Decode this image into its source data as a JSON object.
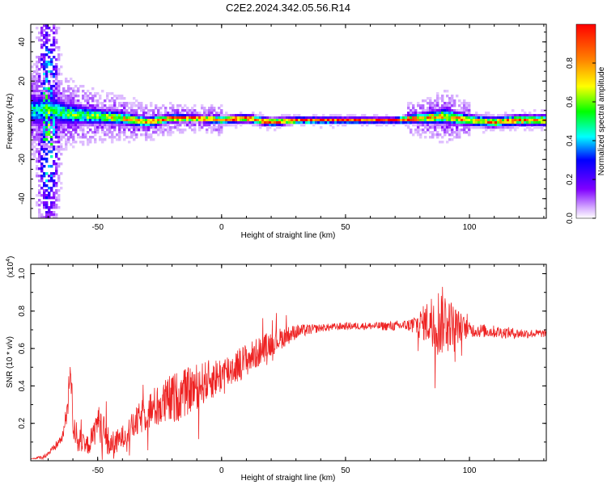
{
  "figure": {
    "title": "C2E2.2024.342.05.56.R14"
  },
  "chart_data": [
    {
      "type": "heatmap",
      "title": "C2E2.2024.342.05.56.R14",
      "xlabel": "Height of straight line (km)",
      "ylabel": "Frequency (Hz)",
      "xlim": [
        -77,
        131
      ],
      "ylim": [
        -50,
        49
      ],
      "x_ticks": [
        -50,
        0,
        50,
        100
      ],
      "y_ticks": [
        -40,
        -20,
        0,
        20,
        40
      ],
      "colorbar": {
        "label": "Normalized spectral amplitude",
        "range": [
          0,
          1
        ],
        "ticks": [
          0.0,
          0.2,
          0.4,
          0.6,
          0.8
        ],
        "tick_labels": [
          "0.0",
          "0.2",
          "0.4",
          "0.6",
          "0.8"
        ],
        "colormap": [
          "#ffffff",
          "#d9b3ff",
          "#8000ff",
          "#0000ff",
          "#00ffff",
          "#00ff00",
          "#ffff00",
          "#ff8000",
          "#ff0000"
        ]
      },
      "ridge": [
        {
          "x": -70,
          "f": 5,
          "width": 6,
          "amp": 0.45
        },
        {
          "x": -60,
          "f": 3,
          "width": 4,
          "amp": 0.55
        },
        {
          "x": -50,
          "f": 2,
          "width": 3,
          "amp": 0.6
        },
        {
          "x": -40,
          "f": 1,
          "width": 2.5,
          "amp": 0.7
        },
        {
          "x": -30,
          "f": -1,
          "width": 2,
          "amp": 0.8
        },
        {
          "x": -20,
          "f": 1,
          "width": 1.5,
          "amp": 0.9
        },
        {
          "x": -10,
          "f": 1,
          "width": 1.2,
          "amp": 0.95
        },
        {
          "x": 0,
          "f": 0,
          "width": 1.5,
          "amp": 0.9
        },
        {
          "x": 10,
          "f": 1,
          "width": 1.5,
          "amp": 0.9
        },
        {
          "x": 20,
          "f": -1,
          "width": 1.5,
          "amp": 0.9
        },
        {
          "x": 30,
          "f": 0,
          "width": 1.2,
          "amp": 0.95
        },
        {
          "x": 50,
          "f": 0,
          "width": 1.0,
          "amp": 1.0
        },
        {
          "x": 70,
          "f": 0,
          "width": 1.0,
          "amp": 1.0
        },
        {
          "x": 80,
          "f": 1,
          "width": 2,
          "amp": 0.8
        },
        {
          "x": 90,
          "f": 2,
          "width": 3,
          "amp": 0.7
        },
        {
          "x": 100,
          "f": 0,
          "width": 2,
          "amp": 0.8
        },
        {
          "x": 110,
          "f": -1,
          "width": 2,
          "amp": 0.8
        },
        {
          "x": 120,
          "f": 0,
          "width": 2,
          "amp": 0.85
        },
        {
          "x": 131,
          "f": 0,
          "width": 2,
          "amp": 0.8
        }
      ]
    },
    {
      "type": "line",
      "xlabel": "Height of straight line (km)",
      "ylabel": "SNR (10 * v/v)",
      "y_multiplier": "(x10",
      "y_multiplier_exp": "4",
      "y_multiplier_close": ")",
      "xlim": [
        -77,
        131
      ],
      "ylim": [
        0,
        1.05
      ],
      "x_ticks": [
        -50,
        0,
        50,
        100
      ],
      "y_ticks": [
        0.2,
        0.4,
        0.6,
        0.8,
        1.0
      ],
      "series": [
        {
          "color": "#ee2222",
          "x": [
            -77,
            -72,
            -68,
            -64,
            -62,
            -61,
            -60,
            -58,
            -55,
            -52,
            -50,
            -48,
            -46,
            -44,
            -42,
            -40,
            -36,
            -32,
            -28,
            -24,
            -20,
            -15,
            -10,
            -5,
            0,
            5,
            10,
            15,
            20,
            25,
            30,
            35,
            40,
            50,
            60,
            70,
            80,
            85,
            88,
            90,
            92,
            95,
            100,
            110,
            120,
            131
          ],
          "y": [
            0.01,
            0.02,
            0.06,
            0.13,
            0.3,
            0.55,
            0.2,
            0.12,
            0.07,
            0.12,
            0.22,
            0.16,
            0.1,
            0.08,
            0.1,
            0.13,
            0.18,
            0.24,
            0.28,
            0.3,
            0.33,
            0.36,
            0.4,
            0.43,
            0.46,
            0.5,
            0.54,
            0.58,
            0.63,
            0.66,
            0.69,
            0.7,
            0.71,
            0.72,
            0.72,
            0.72,
            0.73,
            0.75,
            0.74,
            0.76,
            0.74,
            0.72,
            0.7,
            0.69,
            0.68,
            0.68
          ]
        }
      ],
      "noise": [
        {
          "x": -77,
          "amp": 0.0
        },
        {
          "x": -64,
          "amp": 0.03
        },
        {
          "x": -61,
          "amp": 0.1
        },
        {
          "x": -55,
          "amp": 0.05
        },
        {
          "x": -48,
          "amp": 0.1
        },
        {
          "x": -40,
          "amp": 0.06
        },
        {
          "x": -30,
          "amp": 0.1
        },
        {
          "x": -20,
          "amp": 0.14
        },
        {
          "x": -10,
          "amp": 0.12
        },
        {
          "x": 0,
          "amp": 0.1
        },
        {
          "x": 10,
          "amp": 0.09
        },
        {
          "x": 20,
          "amp": 0.07
        },
        {
          "x": 30,
          "amp": 0.04
        },
        {
          "x": 40,
          "amp": 0.02
        },
        {
          "x": 60,
          "amp": 0.02
        },
        {
          "x": 75,
          "amp": 0.03
        },
        {
          "x": 82,
          "amp": 0.1
        },
        {
          "x": 88,
          "amp": 0.2
        },
        {
          "x": 93,
          "amp": 0.12
        },
        {
          "x": 100,
          "amp": 0.04
        },
        {
          "x": 131,
          "amp": 0.02
        }
      ]
    }
  ]
}
